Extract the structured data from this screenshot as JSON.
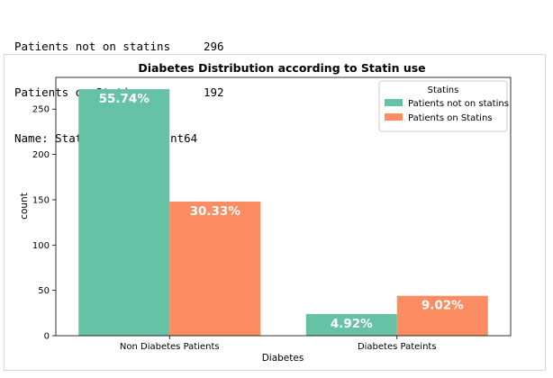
{
  "console": {
    "lines": [
      {
        "label": "Patients not on statins",
        "value": "296"
      },
      {
        "label": "Patients on Statins",
        "value": "192"
      }
    ],
    "meta": "Name: Statins, dtype: int64"
  },
  "chart_data": {
    "type": "bar",
    "title": "Diabetes Distribution according to Statin use",
    "xlabel": "Diabetes",
    "ylabel": "count",
    "categories": [
      "Non Diabetes Patients",
      "Diabetes Pateints"
    ],
    "series": [
      {
        "name": "Patients not on statins",
        "color": "#66c2a5",
        "values": [
          272,
          24
        ],
        "labels": [
          "55.74%",
          "4.92%"
        ]
      },
      {
        "name": "Patients on Statins",
        "color": "#fc8d62",
        "values": [
          148,
          44
        ],
        "labels": [
          "30.33%",
          "9.02%"
        ]
      }
    ],
    "ylim": [
      0,
      285
    ],
    "yticks": [
      0,
      50,
      100,
      150,
      200,
      250
    ],
    "legend": {
      "title": "Statins",
      "placement": "top-right"
    },
    "grid": false
  }
}
